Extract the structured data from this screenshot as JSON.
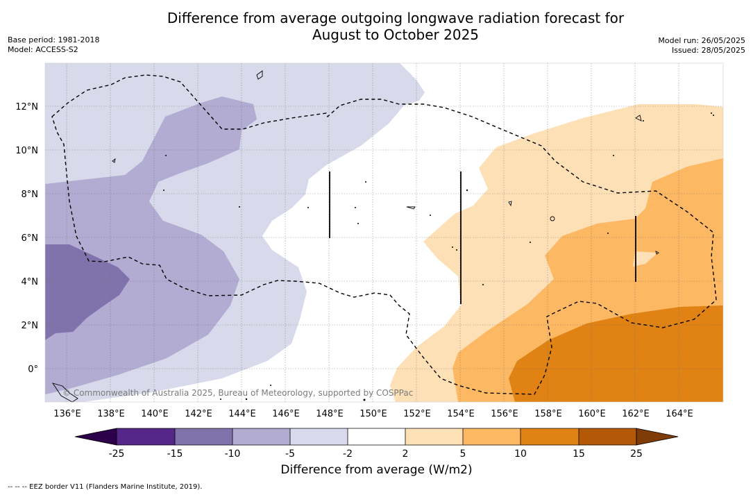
{
  "header": {
    "title_line1": "Difference from average outgoing longwave radiation forecast for",
    "title_line2": "August to October 2025",
    "base_period": "Base period: 1981-2018",
    "model": "Model: ACCESS-S2",
    "model_run": "Model run: 26/05/2025",
    "issued": "Issued: 28/05/2025"
  },
  "map": {
    "lon_ticks": [
      "136°E",
      "138°E",
      "140°E",
      "142°E",
      "144°E",
      "146°E",
      "148°E",
      "150°E",
      "152°E",
      "154°E",
      "156°E",
      "158°E",
      "160°E",
      "162°E",
      "164°E"
    ],
    "lat_ticks": [
      "12°N",
      "10°N",
      "8°N",
      "6°N",
      "4°N",
      "2°N",
      "0°"
    ],
    "copyright": "© Commonwealth of Australia 2025, Bureau of Meteorology, supported by COSPPac",
    "eez_line_style": "dashed"
  },
  "colorbar": {
    "tick_labels": [
      "-25",
      "-15",
      "-10",
      "-5",
      "-2",
      "2",
      "5",
      "10",
      "15",
      "25"
    ],
    "label": "Difference from average (W/m2)",
    "colors": {
      "below_min": "#2d004b",
      "bins": [
        "#542788",
        "#8073ac",
        "#b2abd2",
        "#d8daeb",
        "#ffffff",
        "#fee0b6",
        "#fdb863",
        "#e08214",
        "#b35806"
      ],
      "above_max": "#7f3b08"
    }
  },
  "footnote": "--  --  -- EEZ border V11 (Flanders Marine Institute, 2019)."
}
